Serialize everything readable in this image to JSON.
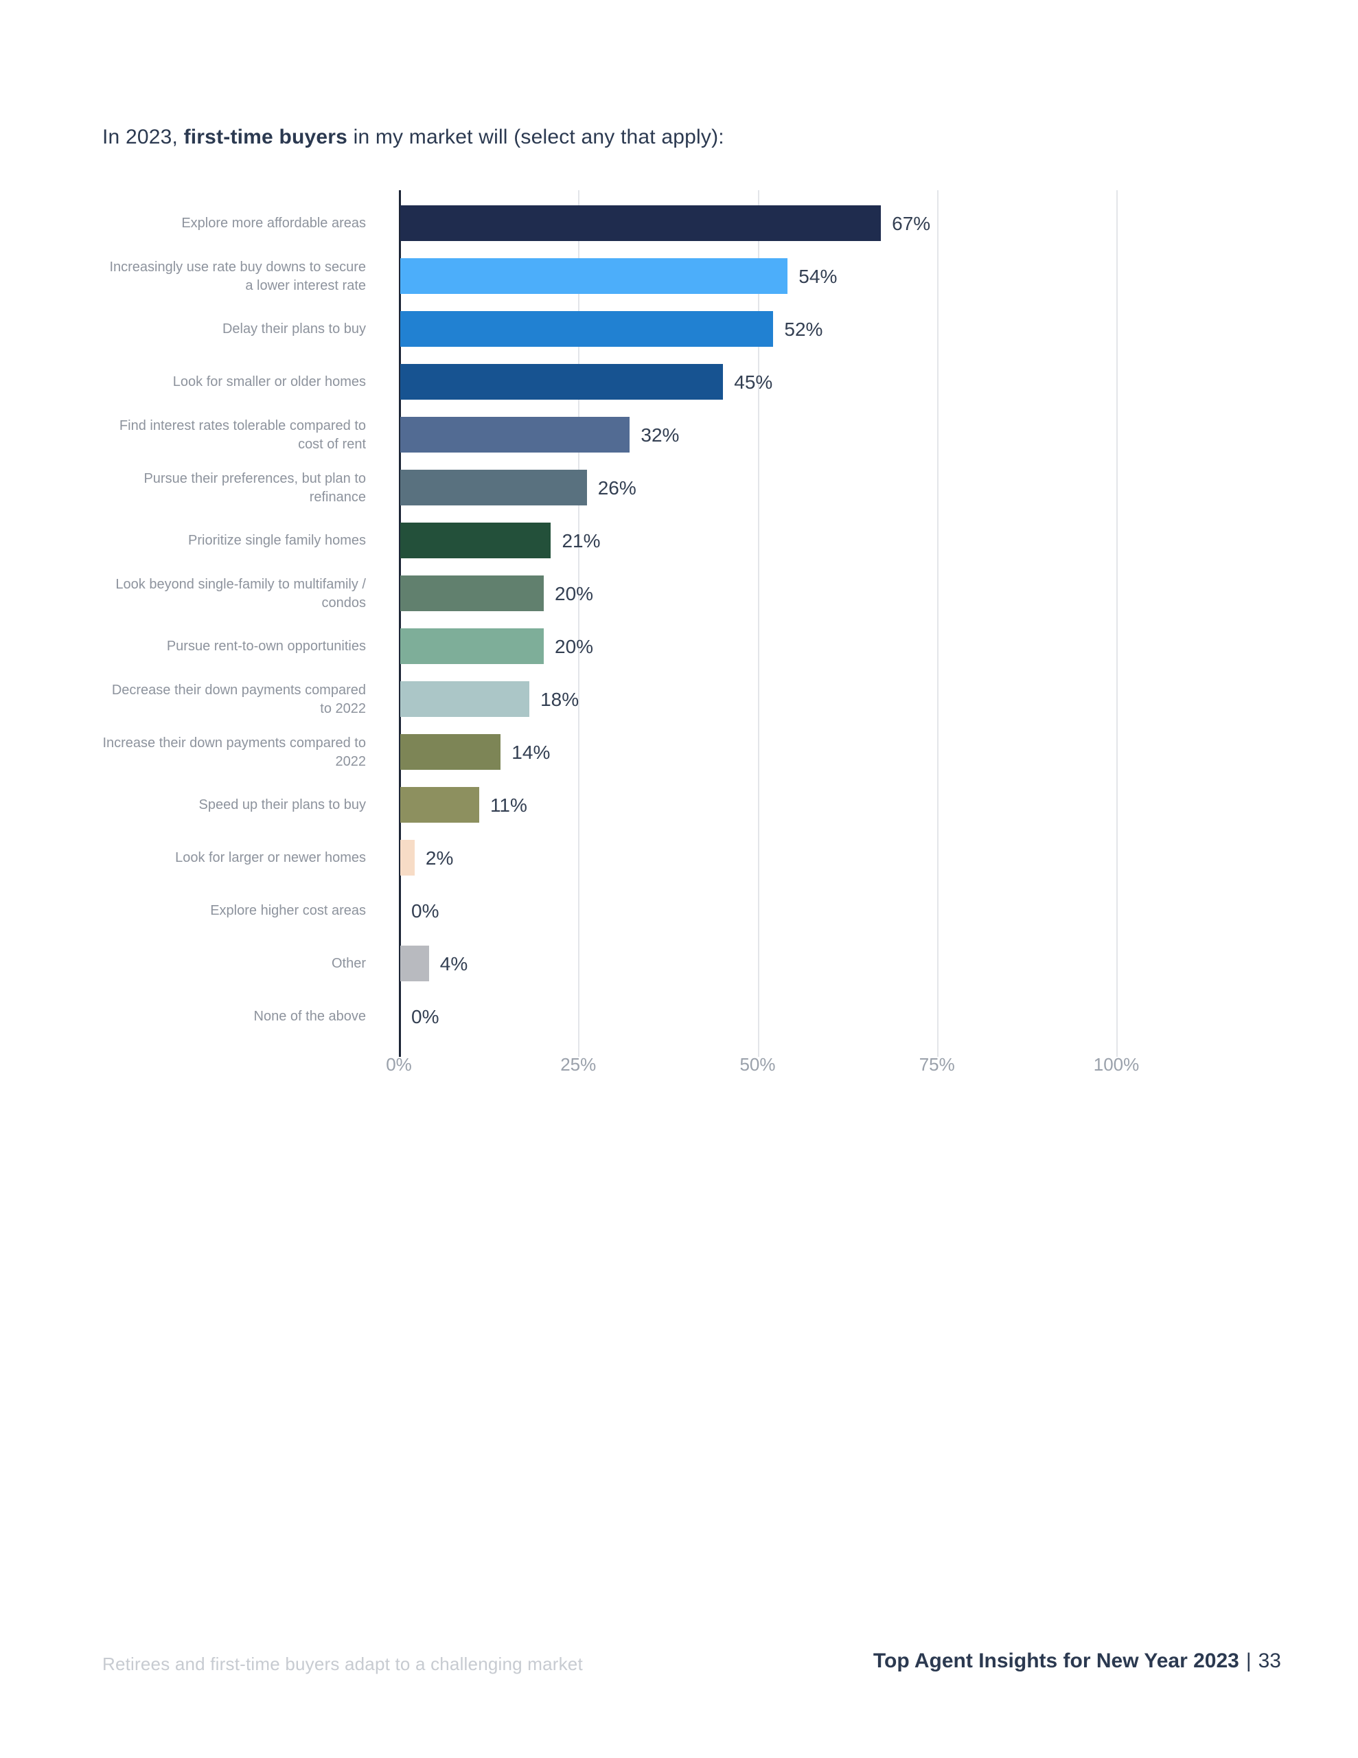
{
  "page": {
    "title_prefix": "In 2023, ",
    "title_bold": "first-time buyers",
    "title_suffix": " in my market will (select any that apply):",
    "footer_left": "Retirees and first-time buyers adapt to a challenging market",
    "footer_right": "Top Agent Insights for New Year 2023",
    "footer_separator": "|",
    "page_number": "33"
  },
  "chart_data": {
    "type": "bar",
    "orientation": "horizontal",
    "title": "In 2023, first-time buyers in my market will (select any that apply):",
    "categories": [
      "Explore more affordable areas",
      "Increasingly use rate buy downs to secure a lower interest rate",
      "Delay their plans to buy",
      "Look for smaller or older homes",
      "Find interest rates tolerable compared to cost of rent",
      "Pursue their preferences, but plan to refinance",
      "Prioritize single family homes",
      "Look beyond single-family to multifamily / condos",
      "Pursue rent-to-own opportunities",
      "Decrease their down payments compared to 2022",
      "Increase their down payments compared to 2022",
      "Speed up their plans to buy",
      "Look for larger or newer homes",
      "Explore higher cost areas",
      "Other",
      "None of the above"
    ],
    "values": [
      67,
      54,
      52,
      45,
      32,
      26,
      21,
      20,
      20,
      18,
      14,
      11,
      2,
      0,
      4,
      0
    ],
    "value_labels": [
      "67%",
      "54%",
      "52%",
      "45%",
      "32%",
      "26%",
      "21%",
      "20%",
      "20%",
      "18%",
      "14%",
      "11%",
      "2%",
      "0%",
      "4%",
      "0%"
    ],
    "bar_colors": [
      "#1f2c4e",
      "#4caefa",
      "#2181d2",
      "#175391",
      "#526b93",
      "#59717f",
      "#23503a",
      "#61806e",
      "#7eae99",
      "#abc6c7",
      "#7d8556",
      "#8d905f",
      "#f7dcc6",
      "",
      "#b8babf",
      ""
    ],
    "x_ticks": [
      "0%",
      "25%",
      "50%",
      "75%",
      "100%"
    ],
    "x_tick_values": [
      0,
      25,
      50,
      75,
      100
    ],
    "xlim": [
      0,
      100
    ],
    "grid": true,
    "legend": false,
    "axis_color": "#1d2637",
    "gridline_color": "#e3e5e9"
  }
}
